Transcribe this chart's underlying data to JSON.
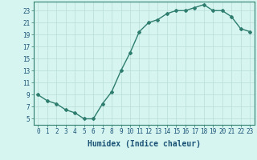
{
  "x": [
    0,
    1,
    2,
    3,
    4,
    5,
    6,
    7,
    8,
    9,
    10,
    11,
    12,
    13,
    14,
    15,
    16,
    17,
    18,
    19,
    20,
    21,
    22,
    23
  ],
  "y": [
    9,
    8,
    7.5,
    6.5,
    6,
    5,
    5,
    7.5,
    9.5,
    13,
    16,
    19.5,
    21,
    21.5,
    22.5,
    23,
    23,
    23.5,
    24,
    23,
    23,
    22,
    20,
    19.5
  ],
  "line_color": "#2e7d6e",
  "marker": "D",
  "marker_size": 2.0,
  "bg_color": "#d6f5f0",
  "grid_color": "#b8ddd8",
  "xlabel": "Humidex (Indice chaleur)",
  "xlabel_color": "#1a5276",
  "xlabel_fontsize": 7,
  "ytick_labels": [
    "5",
    "7",
    "9",
    "11",
    "13",
    "15",
    "17",
    "19",
    "21",
    "23"
  ],
  "ytick_values": [
    5,
    7,
    9,
    11,
    13,
    15,
    17,
    19,
    21,
    23
  ],
  "ylim": [
    4.0,
    24.5
  ],
  "xlim": [
    -0.5,
    23.5
  ],
  "xtick_values": [
    0,
    1,
    2,
    3,
    4,
    5,
    6,
    7,
    8,
    9,
    10,
    11,
    12,
    13,
    14,
    15,
    16,
    17,
    18,
    19,
    20,
    21,
    22,
    23
  ],
  "tick_fontsize": 5.5,
  "tick_color": "#1a5276",
  "spine_color": "#2e7d6e",
  "linewidth": 1.0
}
